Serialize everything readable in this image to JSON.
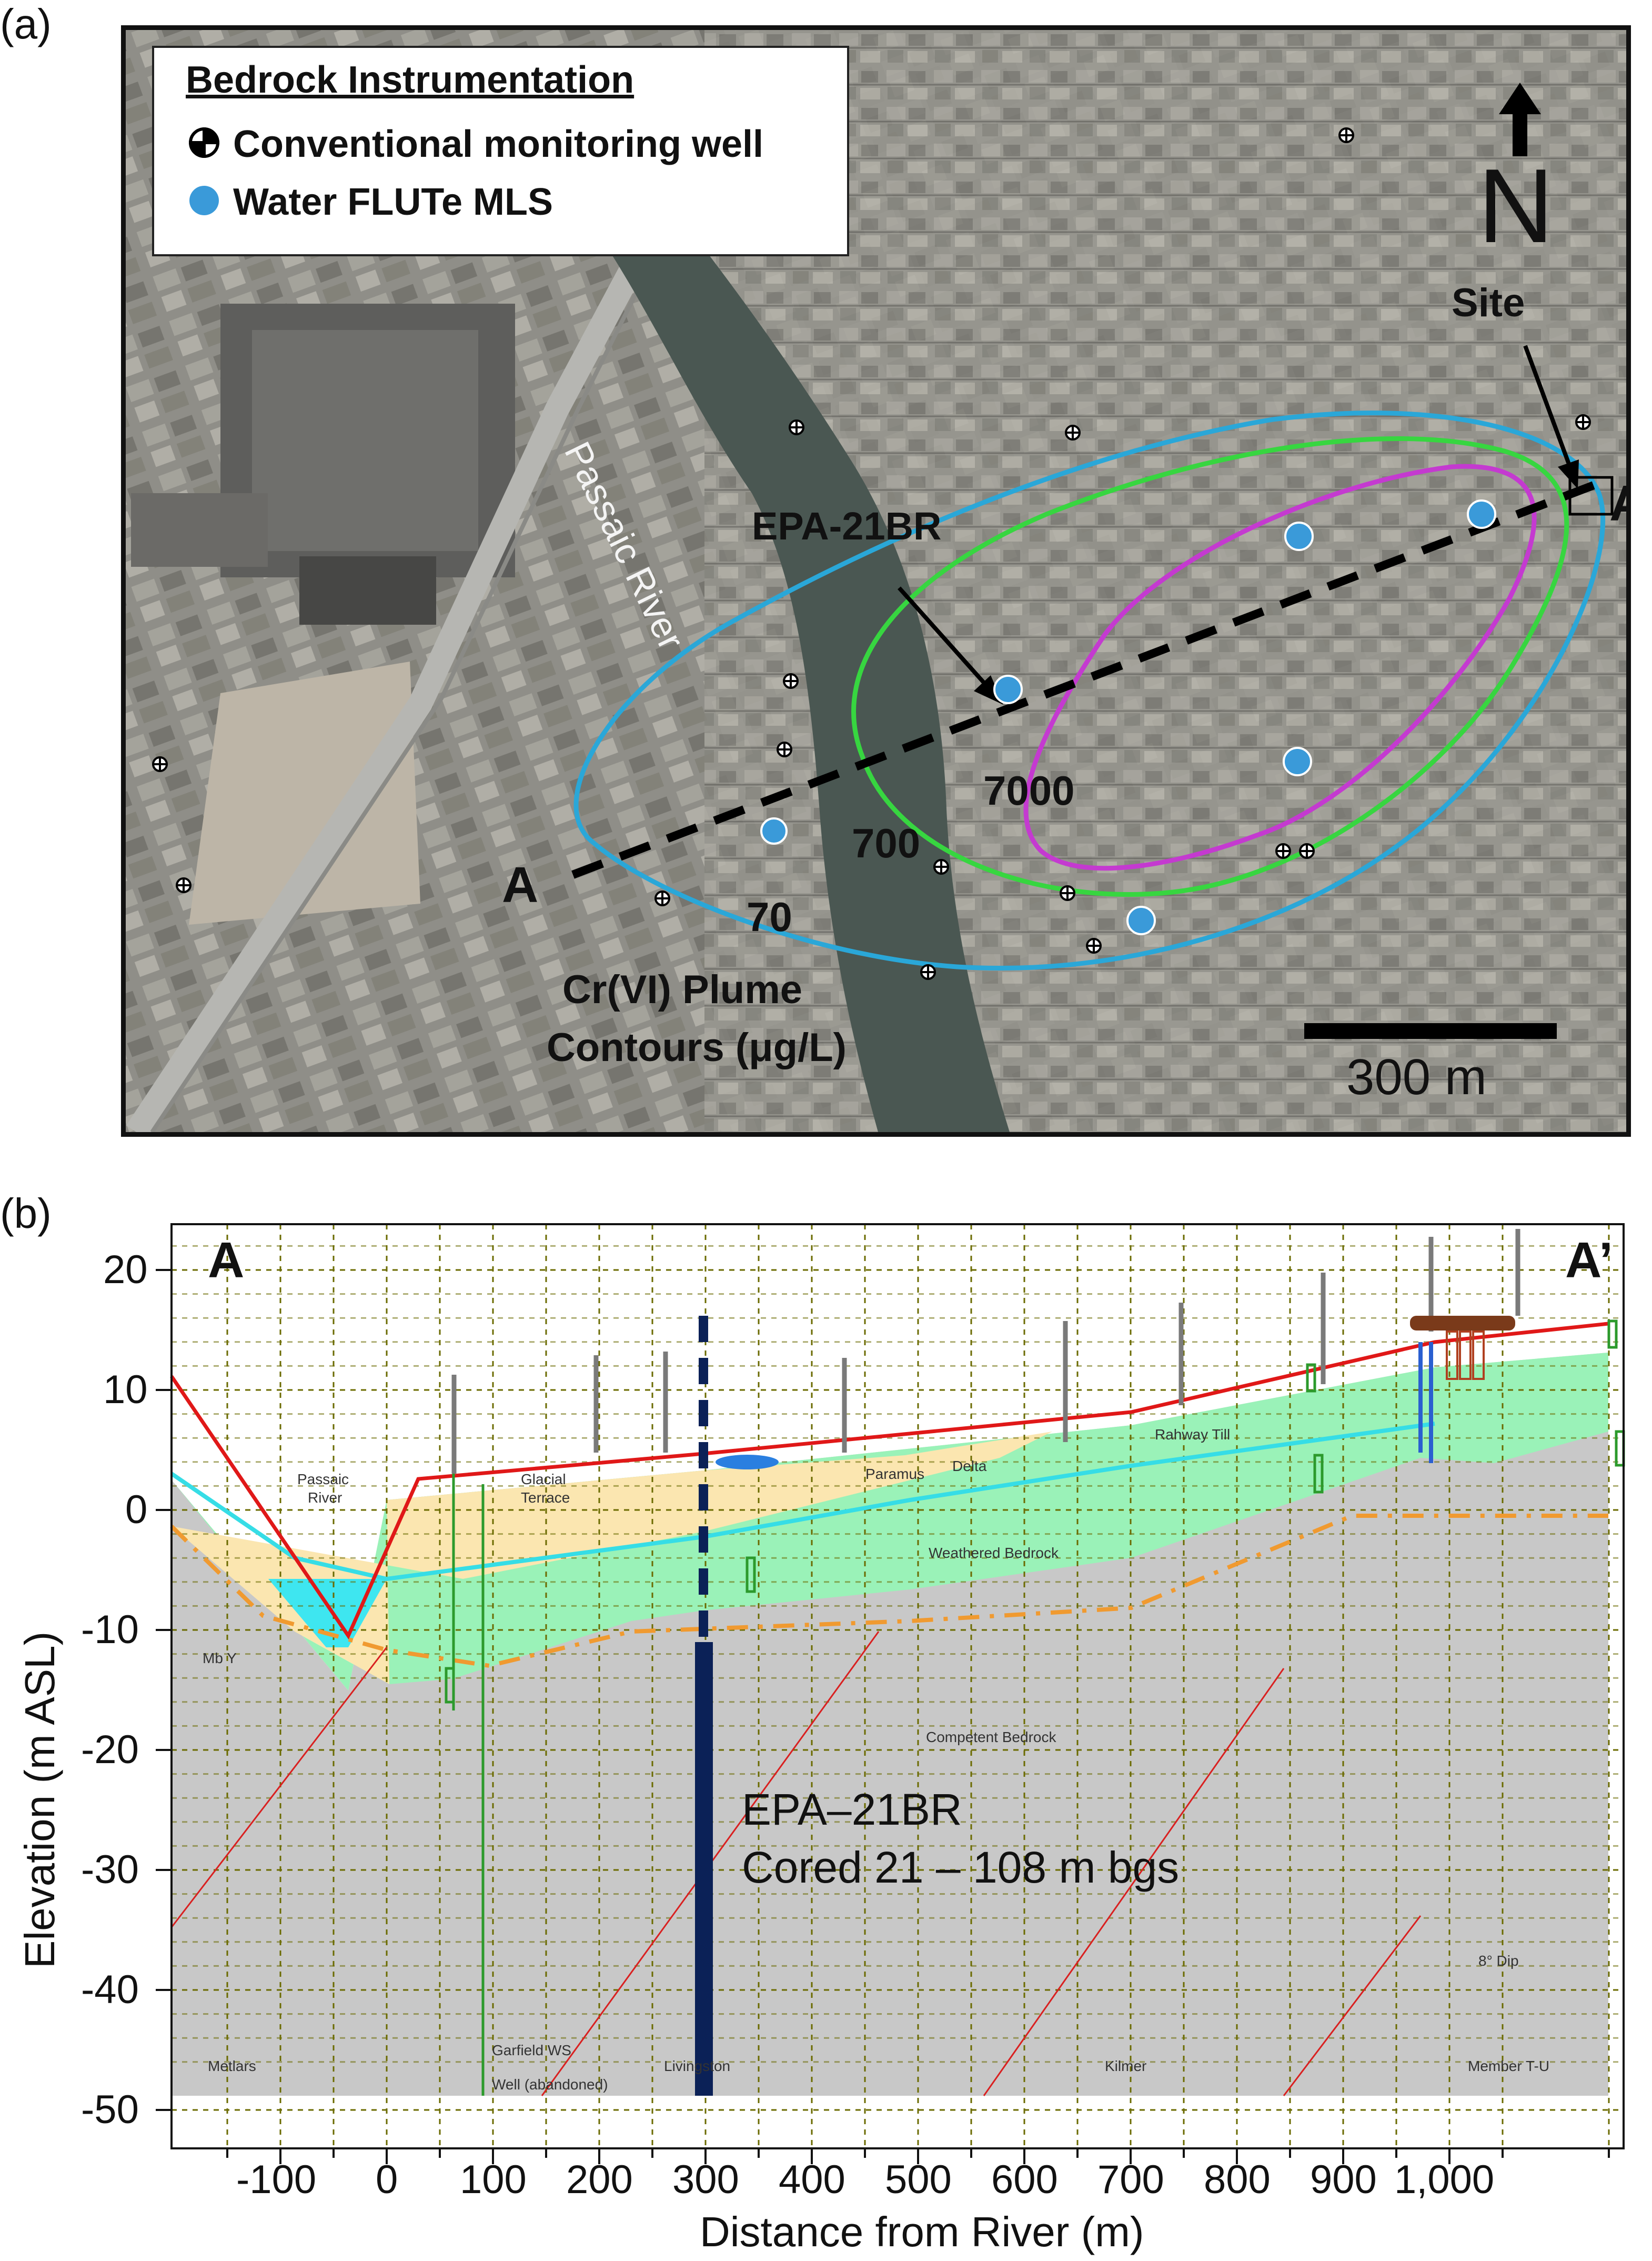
{
  "panel_a": {
    "label": "(a)",
    "legend": {
      "title": "Bedrock Instrumentation",
      "items": [
        {
          "label": "Conventional monitoring well",
          "icon": "monitoring-well-icon"
        },
        {
          "label": "Water FLUTe MLS",
          "icon": "mls-dot-icon",
          "color": "#3a9ad9"
        }
      ]
    },
    "north_label": "N",
    "site_label": "Site",
    "river_label": "Passaic River",
    "well_label": "EPA-21BR",
    "section_start": "A",
    "section_end": "A’",
    "contours": [
      {
        "label": "70",
        "color": "#2aa7d8"
      },
      {
        "label": "700",
        "color": "#37d640"
      },
      {
        "label": "7000",
        "color": "#c43ad0"
      }
    ],
    "plume_label_1": "Cr(VI) Plume",
    "plume_label_2": "Contours (μg/L)",
    "scale_label": "300 m"
  },
  "panel_b": {
    "label": "(b)",
    "section_start": "A",
    "section_end": "A’",
    "xlabel": "Distance from River (m)",
    "ylabel": "Elevation (m ASL)",
    "x_ticks": [
      "-100",
      "0",
      "100",
      "200",
      "300",
      "400",
      "500",
      "600",
      "700",
      "800",
      "900",
      "1,000"
    ],
    "y_ticks": [
      "20",
      "10",
      "0",
      "-10",
      "-20",
      "-30",
      "-40",
      "-50"
    ],
    "well_title": "EPA–21BR",
    "well_sub": "Cored 21 – 108 m bgs",
    "geo_labels": {
      "passaic_1": "Passaic",
      "passaic_2": "River",
      "glacial_1": "Glacial",
      "glacial_2": "Terrace",
      "paramus": "Paramus",
      "delta": "Delta",
      "rahway": "Rahway Till",
      "weathered": "Weathered Bedrock",
      "competent": "Competent Bedrock",
      "mby": "Mb Y",
      "dip": "8° Dip",
      "garfield_1": "Garfield WS",
      "garfield_2": "Well (abandoned)",
      "metlars": "Metlars",
      "livingston": "Livingston",
      "kilmer": "Kilmer",
      "member": "Member T-U"
    },
    "colors": {
      "bedrock": "#c8c8c8",
      "till": "#9af2b8",
      "terrace": "#fbe6b0",
      "water": "#3ee6f0",
      "ground_surface": "#e01818",
      "water_table": "#36dde6",
      "weathered_contact": "#f09a30",
      "fractures": "#d92020",
      "core": "#0b2157"
    }
  }
}
